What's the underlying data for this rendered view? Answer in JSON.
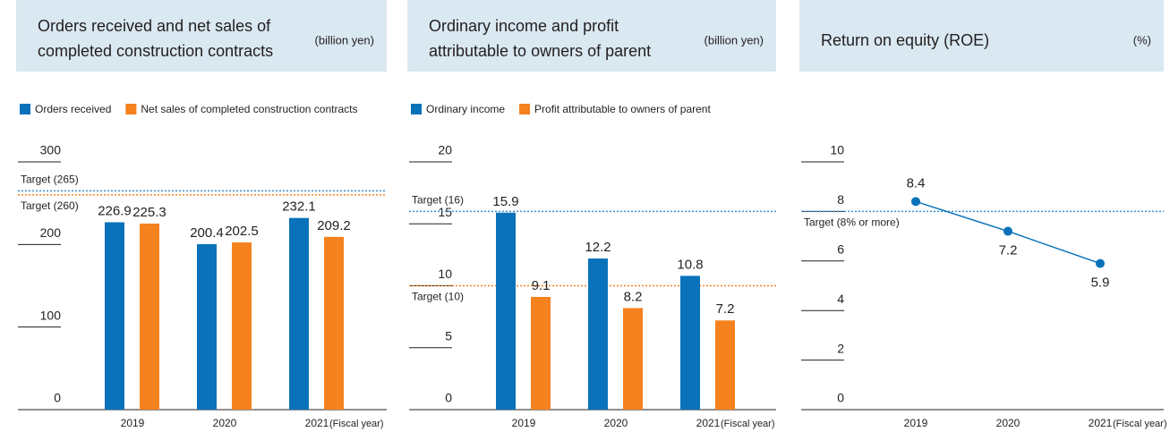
{
  "chart_data": [
    {
      "type": "bar",
      "title": [
        "Orders received and net sales of",
        "completed construction contracts"
      ],
      "unit": "(billion yen)",
      "x_note": "(Fiscal year)",
      "categories": [
        "2019",
        "2020",
        "2021"
      ],
      "series": [
        {
          "name": "Orders received",
          "color": "#0a72ba",
          "values": [
            226.9,
            200.4,
            232.1
          ]
        },
        {
          "name": "Net sales of completed construction contracts",
          "color": "#f5821f",
          "values": [
            225.3,
            202.5,
            209.2
          ]
        }
      ],
      "ylim": [
        0,
        300
      ],
      "yticks": [
        0,
        100,
        200,
        300
      ],
      "targets": [
        {
          "value": 265,
          "label": "Target (265)",
          "color": "#3b8fd0"
        },
        {
          "value": 260,
          "label": "Target (260)",
          "color": "#f5821f"
        }
      ]
    },
    {
      "type": "bar",
      "title": [
        "Ordinary income and profit",
        "attributable to owners of parent"
      ],
      "unit": "(billion yen)",
      "x_note": "(Fiscal year)",
      "categories": [
        "2019",
        "2020",
        "2021"
      ],
      "series": [
        {
          "name": "Ordinary income",
          "color": "#0a72ba",
          "values": [
            15.9,
            12.2,
            10.8
          ]
        },
        {
          "name": "Profit attributable to owners of parent",
          "color": "#f5821f",
          "values": [
            9.1,
            8.2,
            7.2
          ]
        }
      ],
      "ylim": [
        0,
        20
      ],
      "yticks": [
        0,
        5,
        10,
        15,
        20
      ],
      "targets": [
        {
          "value": 16,
          "label": "Target (16)",
          "color": "#3b8fd0"
        },
        {
          "value": 10,
          "label": "Target (10)",
          "color": "#f5821f"
        }
      ]
    },
    {
      "type": "line",
      "title": [
        "Return on equity (ROE)"
      ],
      "unit": "(%)",
      "x_note": "(Fiscal year)",
      "categories": [
        "2019",
        "2020",
        "2021"
      ],
      "series": [
        {
          "color": "#0a72ba",
          "values": [
            8.4,
            7.2,
            5.9
          ]
        }
      ],
      "ylim": [
        0,
        10
      ],
      "yticks": [
        0,
        2,
        4,
        6,
        8,
        10
      ],
      "targets": [
        {
          "value": 8,
          "label": "Target (8% or more)",
          "color": "#3b8fd0"
        }
      ]
    }
  ]
}
